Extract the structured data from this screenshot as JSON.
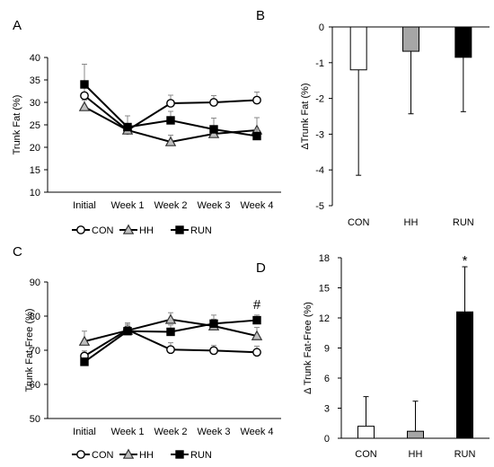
{
  "chart_data": [
    {
      "panel": "A",
      "type": "line",
      "ylabel": "Trunk Fat (%)",
      "ylim": [
        10,
        40
      ],
      "yticks": [
        10,
        15,
        20,
        25,
        30,
        35,
        40
      ],
      "categories": [
        "Initial",
        "Week 1",
        "Week 2",
        "Week 3",
        "Week 4"
      ],
      "series": [
        {
          "name": "CON",
          "marker": "circle",
          "values": [
            31.5,
            23.8,
            29.8,
            30.0,
            30.5
          ],
          "err": [
            2.5,
            1.2,
            1.8,
            1.5,
            1.8
          ]
        },
        {
          "name": "HH",
          "marker": "triangle",
          "values": [
            29.0,
            23.8,
            21.2,
            23.0,
            23.8
          ],
          "err": [
            1.5,
            1.5,
            1.5,
            1.5,
            2.8
          ]
        },
        {
          "name": "RUN",
          "marker": "square",
          "values": [
            34.0,
            24.5,
            26.0,
            24.0,
            22.5
          ],
          "err": [
            4.5,
            2.5,
            2.0,
            2.5,
            1.5
          ]
        }
      ]
    },
    {
      "panel": "B",
      "type": "bar",
      "ylabel": "ΔTrunk Fat (%)",
      "ylim": [
        -5,
        0
      ],
      "yticks": [
        0,
        -1,
        -2,
        -3,
        -4,
        -5
      ],
      "categories": [
        "CON",
        "HH",
        "RUN"
      ],
      "values": [
        -1.2,
        -0.68,
        -0.85
      ],
      "err": [
        2.95,
        1.75,
        1.52
      ],
      "colors": [
        "#ffffff",
        "#a6a6a6",
        "#000000"
      ]
    },
    {
      "panel": "C",
      "type": "line",
      "ylabel": "Trunk Fat-Free (%)",
      "ylim": [
        50,
        90
      ],
      "yticks": [
        50,
        60,
        70,
        80,
        90
      ],
      "categories": [
        "Initial",
        "Week 1",
        "Week 2",
        "Week 3",
        "Week 4"
      ],
      "annotation": {
        "text": "#",
        "category": "Week 4"
      },
      "series": [
        {
          "name": "CON",
          "marker": "circle",
          "values": [
            68.3,
            76.0,
            70.2,
            69.9,
            69.4
          ],
          "err": [
            1.5,
            2.0,
            2.0,
            1.5,
            1.8
          ]
        },
        {
          "name": "HH",
          "marker": "triangle",
          "values": [
            72.6,
            75.8,
            79.0,
            77.1,
            74.2
          ],
          "err": [
            3.0,
            1.8,
            2.0,
            2.0,
            2.5
          ]
        },
        {
          "name": "RUN",
          "marker": "square",
          "values": [
            66.6,
            75.6,
            75.4,
            77.8,
            78.8
          ],
          "err": [
            1.2,
            1.5,
            2.0,
            2.5,
            1.5
          ]
        }
      ]
    },
    {
      "panel": "D",
      "type": "bar",
      "ylabel": "Δ Trunk Fat-Free (%)",
      "ylim": [
        0,
        18
      ],
      "yticks": [
        0,
        3,
        6,
        9,
        12,
        15,
        18
      ],
      "categories": [
        "CON",
        "HH",
        "RUN"
      ],
      "values": [
        1.2,
        0.7,
        12.6
      ],
      "err": [
        2.95,
        3.0,
        4.5
      ],
      "colors": [
        "#ffffff",
        "#a6a6a6",
        "#000000"
      ],
      "annotation": {
        "text": "*",
        "category": "RUN"
      }
    }
  ],
  "legend": [
    {
      "label": "CON",
      "marker": "circle"
    },
    {
      "label": "HH",
      "marker": "triangle"
    },
    {
      "label": "RUN",
      "marker": "square"
    }
  ]
}
